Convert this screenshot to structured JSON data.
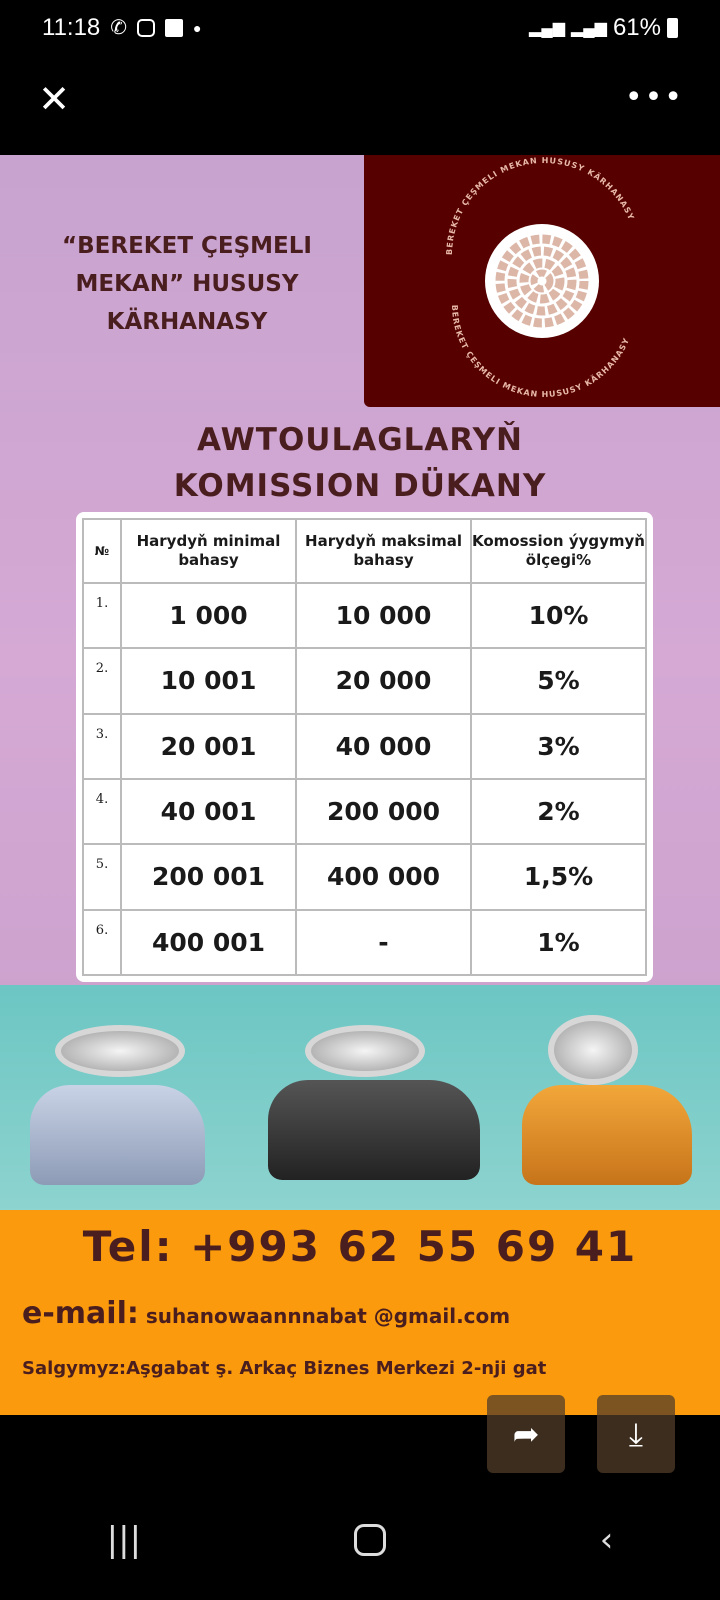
{
  "status_bar": {
    "time": "11:18",
    "battery": "61%",
    "icons": [
      "missed-call-icon",
      "instagram-icon",
      "gallery-icon",
      "dot-icon",
      "signal-icon",
      "signal-icon",
      "battery-icon"
    ]
  },
  "toolbar": {
    "close_icon": "close-icon",
    "more_icon": "more-icon"
  },
  "poster": {
    "company_name": "“BEREKET ÇEŞMELI MEKAN” HUSUSY KÄRHANASY",
    "logo_text": "BEREKET ÇEŞMELI MEKAN HUSUSY KÄRHANASY",
    "title_line1": "AWTOULAGLARYŇ",
    "title_line2": "KOMISSION DÜKANY",
    "table": {
      "headers": [
        "№",
        "Harydyň minimal bahasy",
        "Harydyň maksimal bahasy",
        "Komossion ýygymyň ölçegi%"
      ],
      "rows": [
        [
          "1.",
          "1 000",
          "10 000",
          "10%"
        ],
        [
          "2.",
          "10 001",
          "20 000",
          "5%"
        ],
        [
          "3.",
          "20 001",
          "40 000",
          "3%"
        ],
        [
          "4.",
          "40 001",
          "200 000",
          "2%"
        ],
        [
          "5.",
          "200 001",
          "400 000",
          "1,5%"
        ],
        [
          "6.",
          "400 001",
          "-",
          "1%"
        ]
      ]
    },
    "brands": [
      "lada-logo",
      "toyota-logo",
      "opel-logo"
    ],
    "tel": "Tel: +993 62 55 69 41",
    "email_label": "e-mail:",
    "email": "suhanowaannnabat @gmail.com",
    "address": "Salgymyz:Aşgabat ş. Arkaç Biznes Merkezi 2-nji gat"
  },
  "actions": {
    "share_icon": "share-icon",
    "download_icon": "download-icon"
  },
  "nav": [
    "recent-apps-icon",
    "home-icon",
    "back-icon"
  ],
  "colors": {
    "brown": "#4a1e1e",
    "logo_bg": "#560000",
    "orange": "#fa9a0c",
    "teal": "#6cc6c3",
    "purple": "#d5a9d4"
  }
}
